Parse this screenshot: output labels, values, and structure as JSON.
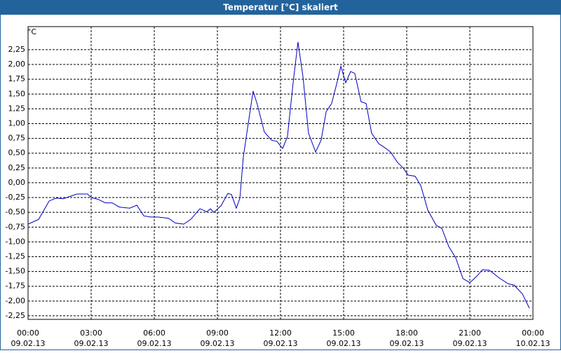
{
  "chart_data": {
    "type": "line",
    "title": "Temperatur [°C] skaliert",
    "y_unit": "°C",
    "xlim": [
      0,
      24
    ],
    "ylim": [
      -2.31,
      2.64
    ],
    "grid": true,
    "xticks": [
      {
        "value": 0,
        "label": "00:00",
        "date": "09.02.13"
      },
      {
        "value": 3,
        "label": "03:00",
        "date": "09.02.13"
      },
      {
        "value": 6,
        "label": "06:00",
        "date": "09.02.13"
      },
      {
        "value": 9,
        "label": "09:00",
        "date": "09.02.13"
      },
      {
        "value": 12,
        "label": "12:00",
        "date": "09.02.13"
      },
      {
        "value": 15,
        "label": "15:00",
        "date": "09.02.13"
      },
      {
        "value": 18,
        "label": "18:00",
        "date": "09.02.13"
      },
      {
        "value": 21,
        "label": "21:00",
        "date": "09.02.13"
      },
      {
        "value": 24,
        "label": "00:00",
        "date": "10.02.13"
      }
    ],
    "yticks": [
      {
        "value": 2.25,
        "label": "2,25"
      },
      {
        "value": 2,
        "label": "2,00"
      },
      {
        "value": 1.75,
        "label": "1,75"
      },
      {
        "value": 1.5,
        "label": "1,50"
      },
      {
        "value": 1.25,
        "label": "1,25"
      },
      {
        "value": 1,
        "label": "1,00"
      },
      {
        "value": 0.75,
        "label": "0,75"
      },
      {
        "value": 0.5,
        "label": "0,50"
      },
      {
        "value": 0.25,
        "label": "0,25"
      },
      {
        "value": 0,
        "label": "0,00"
      },
      {
        "value": -0.25,
        "label": "-0,25"
      },
      {
        "value": -0.5,
        "label": "-0,50"
      },
      {
        "value": -0.75,
        "label": "-0,75"
      },
      {
        "value": -1,
        "label": "-1,00"
      },
      {
        "value": -1.25,
        "label": "-1,25"
      },
      {
        "value": -1.5,
        "label": "-1,50"
      },
      {
        "value": -1.75,
        "label": "-1,75"
      },
      {
        "value": -2,
        "label": "-2,00"
      },
      {
        "value": -2.25,
        "label": "-2,25"
      }
    ],
    "series": [
      {
        "color": "#0000c0",
        "x": [
          0,
          0.5,
          1.0,
          1.33,
          1.67,
          2.0,
          2.33,
          2.83,
          3.0,
          3.33,
          3.67,
          4.0,
          4.33,
          4.83,
          5.17,
          5.5,
          5.83,
          6.17,
          6.67,
          7.0,
          7.4,
          7.73,
          8.17,
          8.5,
          8.67,
          8.83,
          9.17,
          9.5,
          9.67,
          9.9,
          10.07,
          10.23,
          10.5,
          10.7,
          10.9,
          11.23,
          11.57,
          11.83,
          12.1,
          12.33,
          12.6,
          12.83,
          13.07,
          13.33,
          13.67,
          13.93,
          14.17,
          14.43,
          14.67,
          14.87,
          15.1,
          15.33,
          15.53,
          15.83,
          16.07,
          16.33,
          16.67,
          16.93,
          17.23,
          17.57,
          17.83,
          18.07,
          18.4,
          18.67,
          19.0,
          19.4,
          19.67,
          20.0,
          20.33,
          20.67,
          21.0,
          21.33,
          21.6,
          21.93,
          22.4,
          22.83,
          23.1,
          23.5,
          23.83
        ],
        "values": [
          -0.7,
          -0.62,
          -0.31,
          -0.26,
          -0.27,
          -0.23,
          -0.19,
          -0.19,
          -0.25,
          -0.28,
          -0.34,
          -0.34,
          -0.41,
          -0.43,
          -0.38,
          -0.56,
          -0.58,
          -0.58,
          -0.6,
          -0.68,
          -0.7,
          -0.62,
          -0.44,
          -0.49,
          -0.44,
          -0.5,
          -0.39,
          -0.18,
          -0.2,
          -0.43,
          -0.26,
          0.43,
          1.08,
          1.55,
          1.32,
          0.86,
          0.72,
          0.7,
          0.58,
          0.78,
          1.69,
          2.38,
          1.79,
          0.84,
          0.52,
          0.72,
          1.2,
          1.34,
          1.67,
          1.97,
          1.69,
          1.88,
          1.85,
          1.37,
          1.34,
          0.84,
          0.66,
          0.6,
          0.52,
          0.34,
          0.25,
          0.13,
          0.11,
          -0.05,
          -0.46,
          -0.72,
          -0.77,
          -1.08,
          -1.27,
          -1.62,
          -1.69,
          -1.58,
          -1.47,
          -1.48,
          -1.61,
          -1.71,
          -1.73,
          -1.88,
          -2.12
        ]
      }
    ]
  }
}
